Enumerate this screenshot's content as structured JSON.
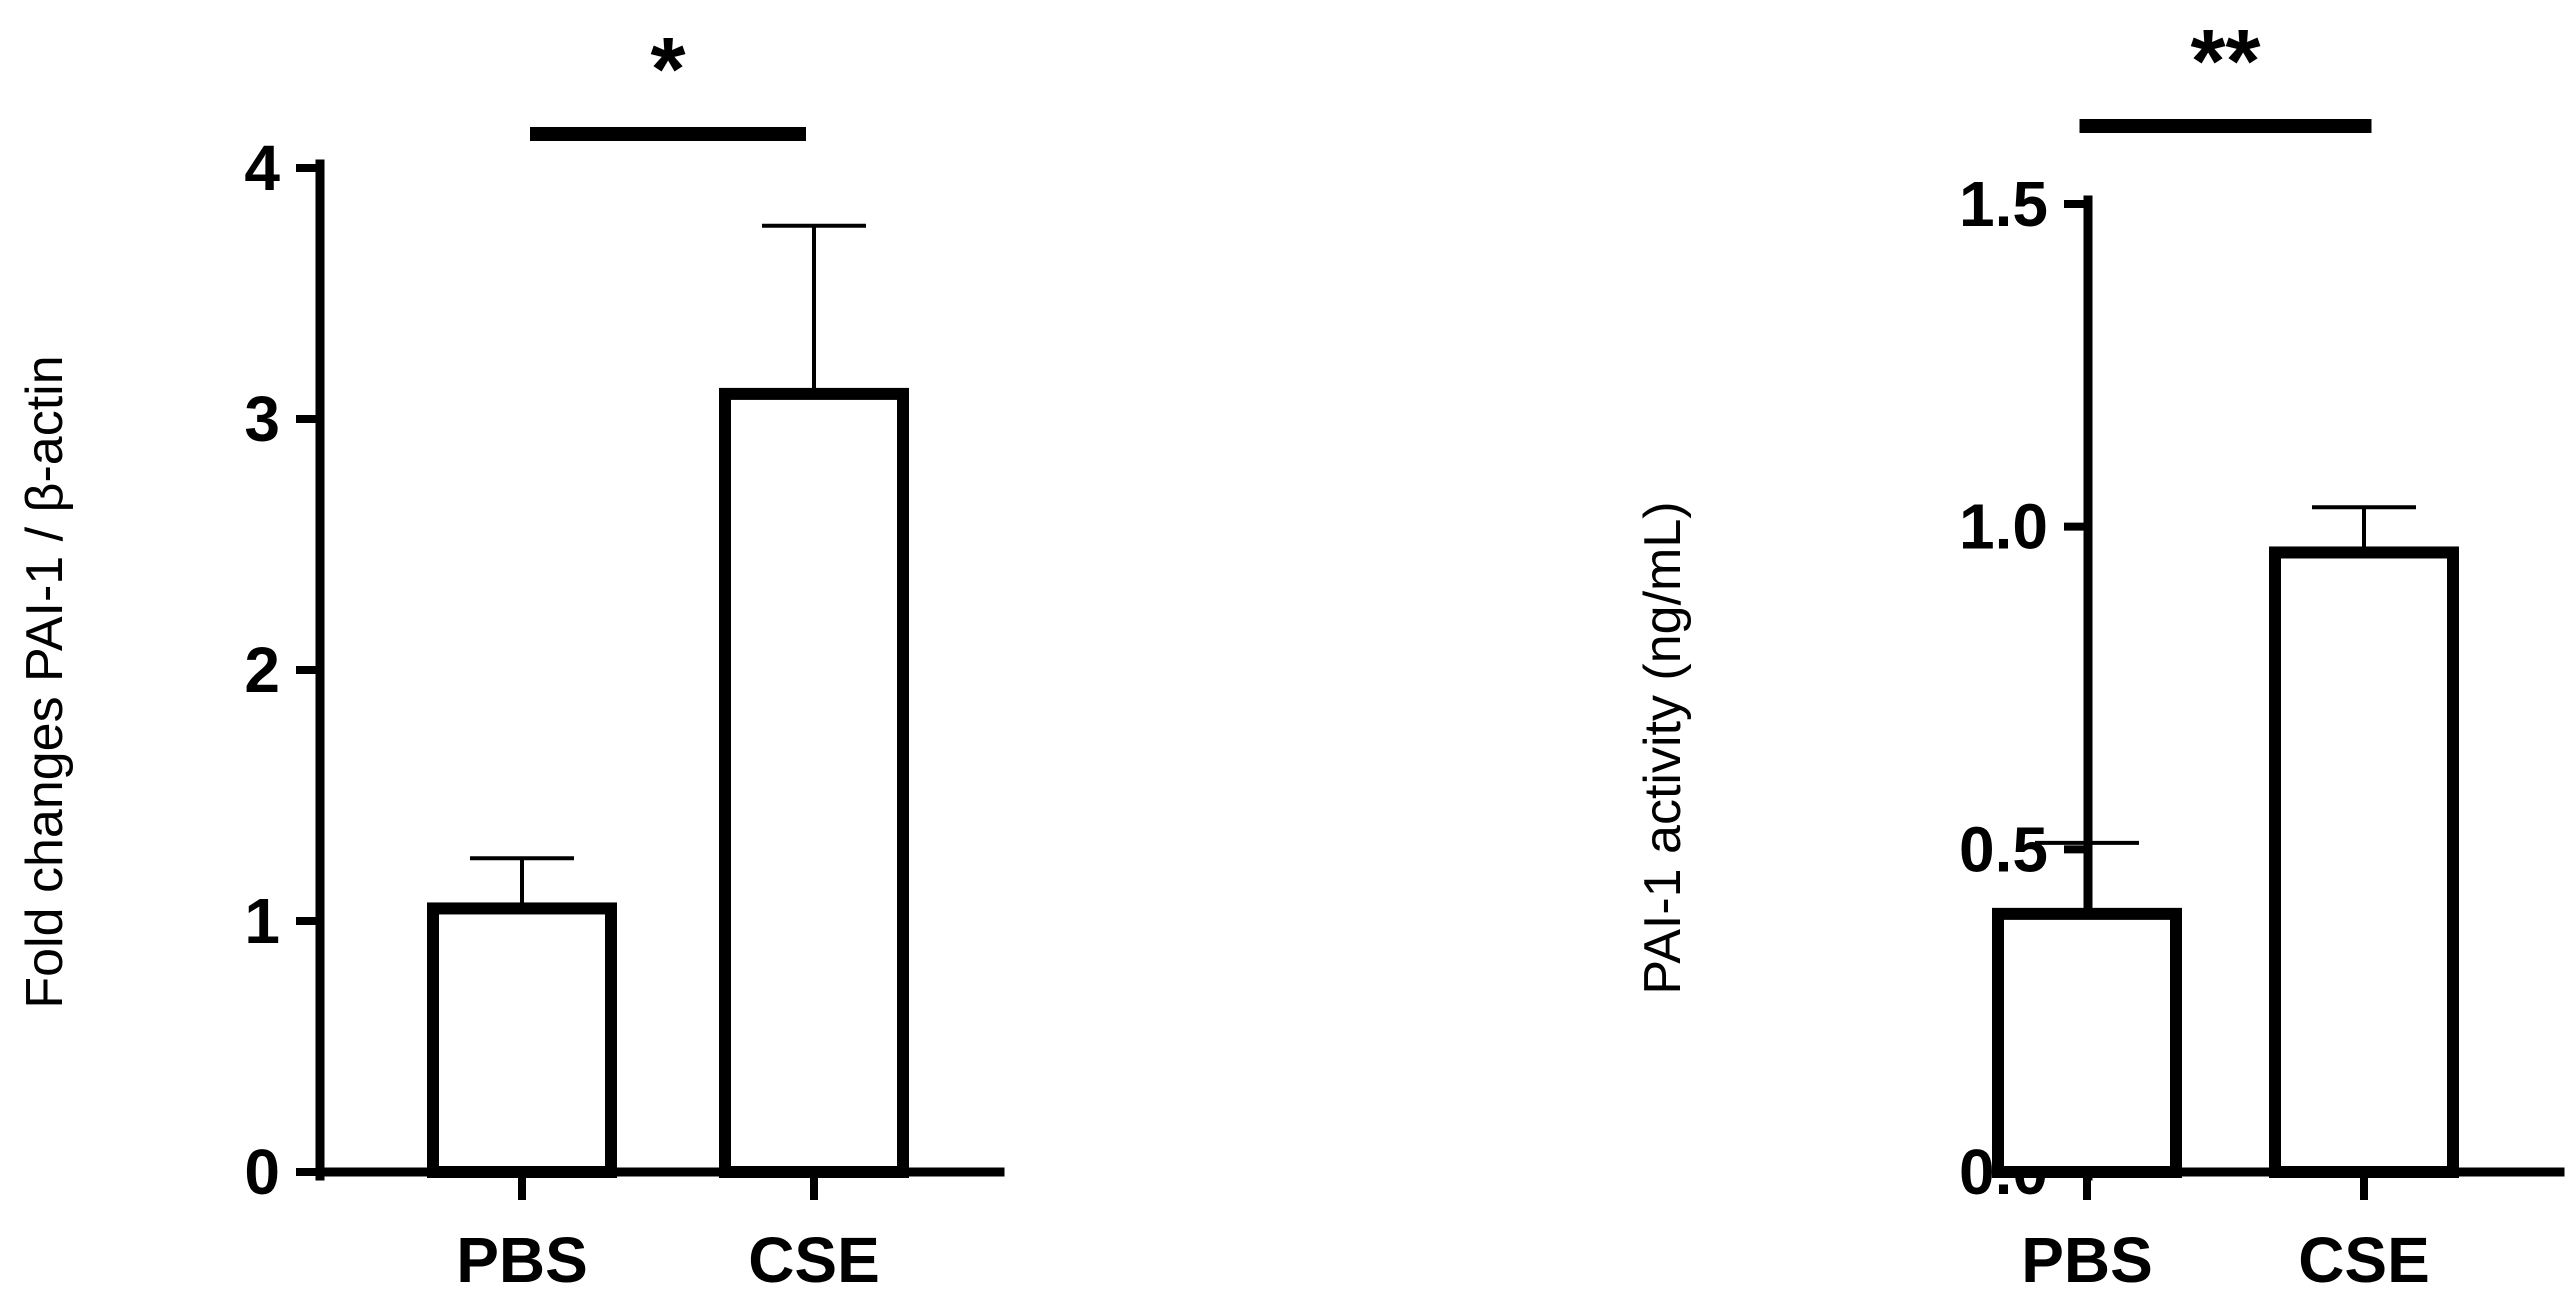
{
  "chart_data": [
    {
      "type": "bar",
      "categories": [
        "PBS",
        "CSE"
      ],
      "values": [
        1.05,
        3.1
      ],
      "error_upper": [
        1.25,
        3.77
      ],
      "ylabel": "Fold changes PAI-1 / β-actin",
      "ylim": [
        0,
        4
      ],
      "yticks": [
        0,
        1,
        2,
        3,
        4
      ],
      "ytick_labels": [
        "0",
        "1",
        "2",
        "3",
        "4"
      ],
      "significance": "*",
      "grid": false,
      "colors": {
        "bar_fill": "#ffffff",
        "bar_edge": "#000000"
      }
    },
    {
      "type": "bar",
      "categories": [
        "PBS",
        "CSE"
      ],
      "values": [
        0.4,
        0.96
      ],
      "error_upper": [
        0.51,
        1.03
      ],
      "ylabel": "PAI-1 activity (ng/mL)",
      "ylim": [
        0,
        1.5
      ],
      "yticks": [
        0,
        0.5,
        1.0,
        1.5
      ],
      "ytick_labels": [
        "0.0",
        "0.5",
        "1.0",
        "1.5"
      ],
      "significance": "**",
      "grid": false,
      "colors": {
        "bar_fill": "#ffffff",
        "bar_edge": "#000000"
      }
    }
  ]
}
